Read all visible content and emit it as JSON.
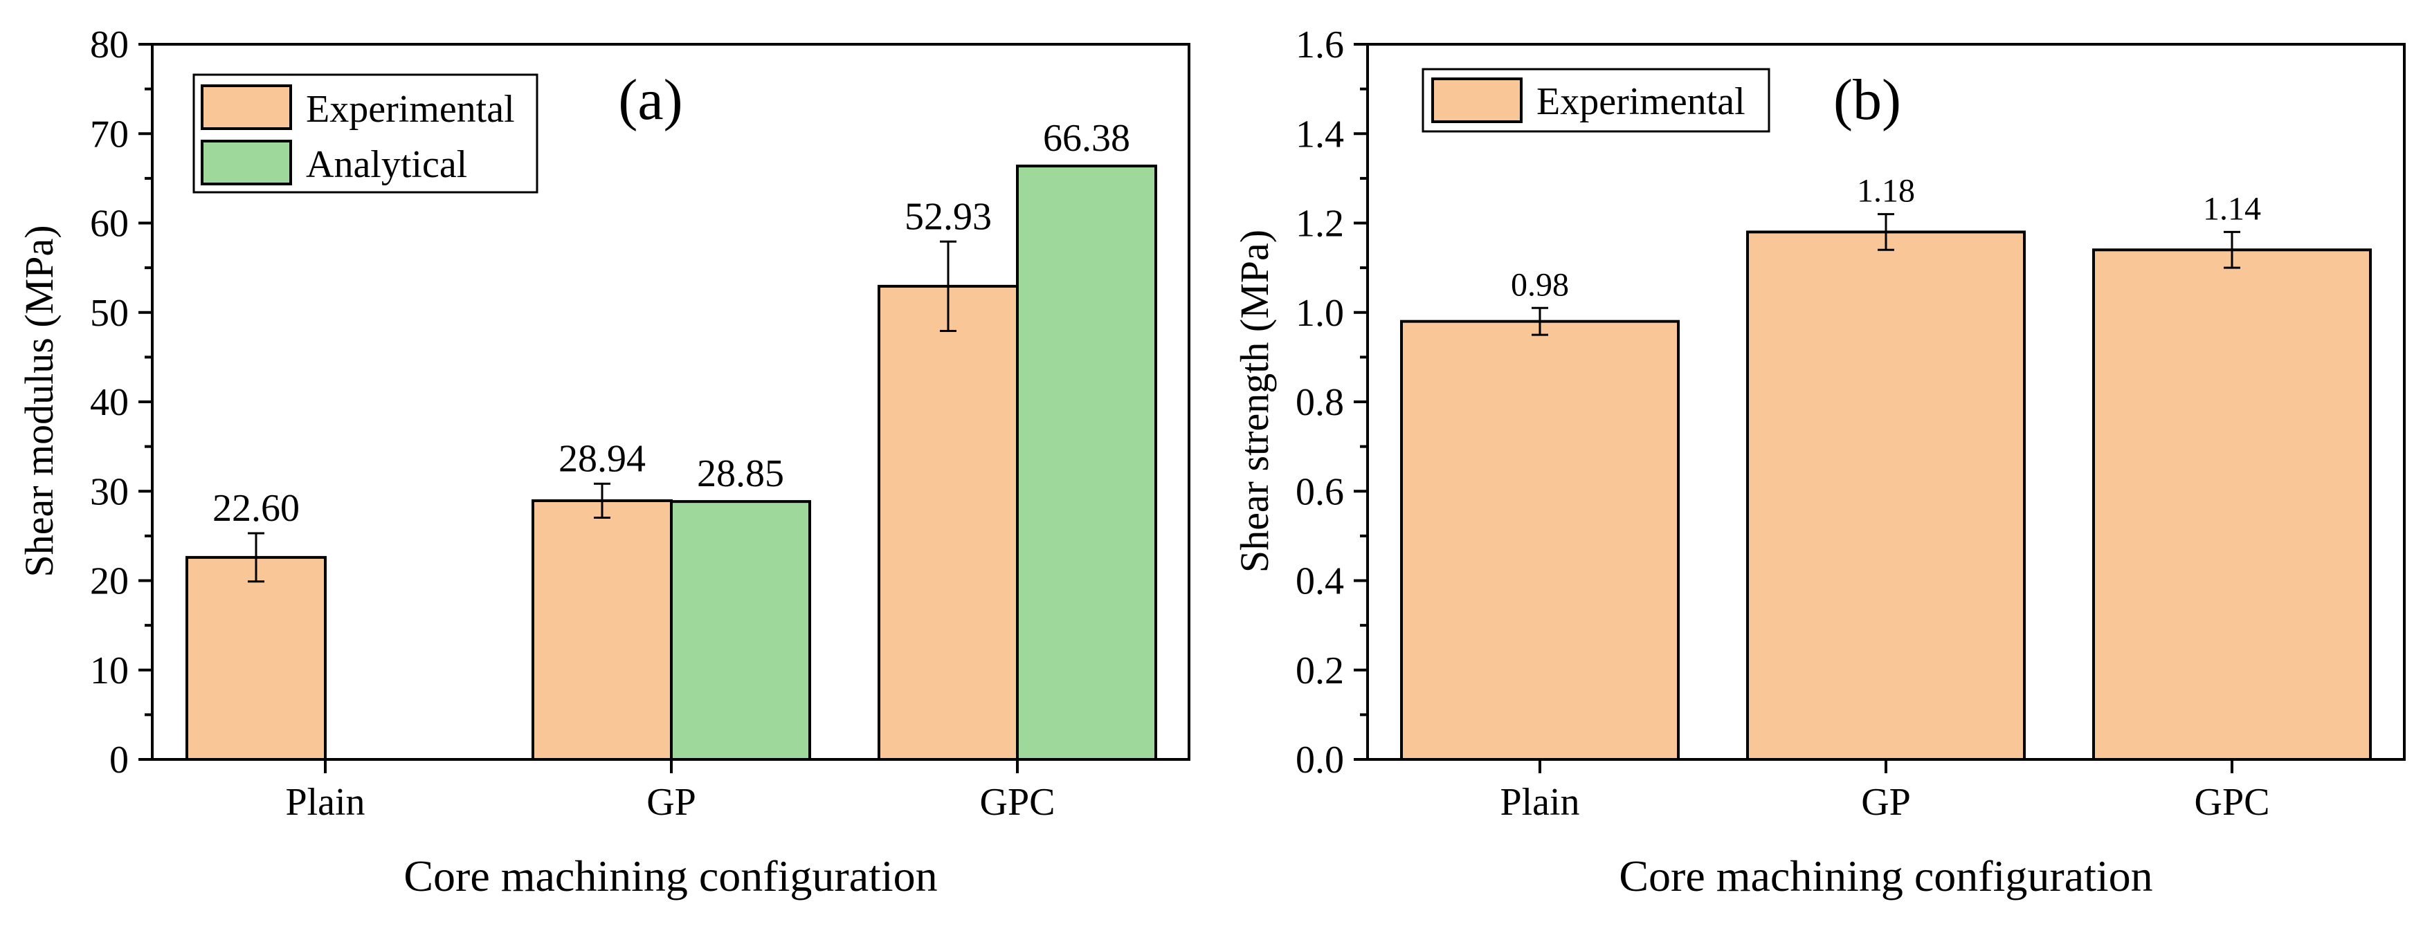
{
  "chart_data": [
    {
      "type": "bar",
      "panel_label": "(a)",
      "title": "",
      "xlabel": "Core machining configuration",
      "ylabel": "Shear modulus (MPa)",
      "categories": [
        "Plain",
        "GP",
        "GPC"
      ],
      "ylim": [
        0,
        80
      ],
      "yticks": [
        0,
        10,
        20,
        30,
        40,
        50,
        60,
        70,
        80
      ],
      "ytick_labels": [
        "0",
        "10",
        "20",
        "30",
        "40",
        "50",
        "60",
        "70",
        "80"
      ],
      "legend_position": "top-left",
      "series": [
        {
          "name": "Experimental",
          "color": "#F9C797",
          "values": [
            22.6,
            28.94,
            52.93
          ],
          "labels": [
            "22.60",
            "28.94",
            "52.93"
          ],
          "errors": [
            2.7,
            1.9,
            5.0
          ]
        },
        {
          "name": "Analytical",
          "color": "#9ED89A",
          "values": [
            null,
            28.85,
            66.38
          ],
          "labels": [
            "",
            "28.85",
            "66.38"
          ],
          "errors": [
            null,
            null,
            null
          ]
        }
      ]
    },
    {
      "type": "bar",
      "panel_label": "(b)",
      "title": "",
      "xlabel": "Core machining configuration",
      "ylabel": "Shear strength (MPa)",
      "categories": [
        "Plain",
        "GP",
        "GPC"
      ],
      "ylim": [
        0,
        1.6
      ],
      "yticks": [
        0,
        0.2,
        0.4,
        0.6,
        0.8,
        1.0,
        1.2,
        1.4,
        1.6
      ],
      "ytick_labels": [
        "0.0",
        "0.2",
        "0.4",
        "0.6",
        "0.8",
        "1.0",
        "1.2",
        "1.4",
        "1.6"
      ],
      "legend_position": "top-left",
      "series": [
        {
          "name": "Experimental",
          "color": "#F9C797",
          "values": [
            0.98,
            1.18,
            1.14
          ],
          "labels": [
            "0.98",
            "1.18",
            "1.14"
          ],
          "errors": [
            0.03,
            0.04,
            0.04
          ]
        }
      ]
    }
  ]
}
